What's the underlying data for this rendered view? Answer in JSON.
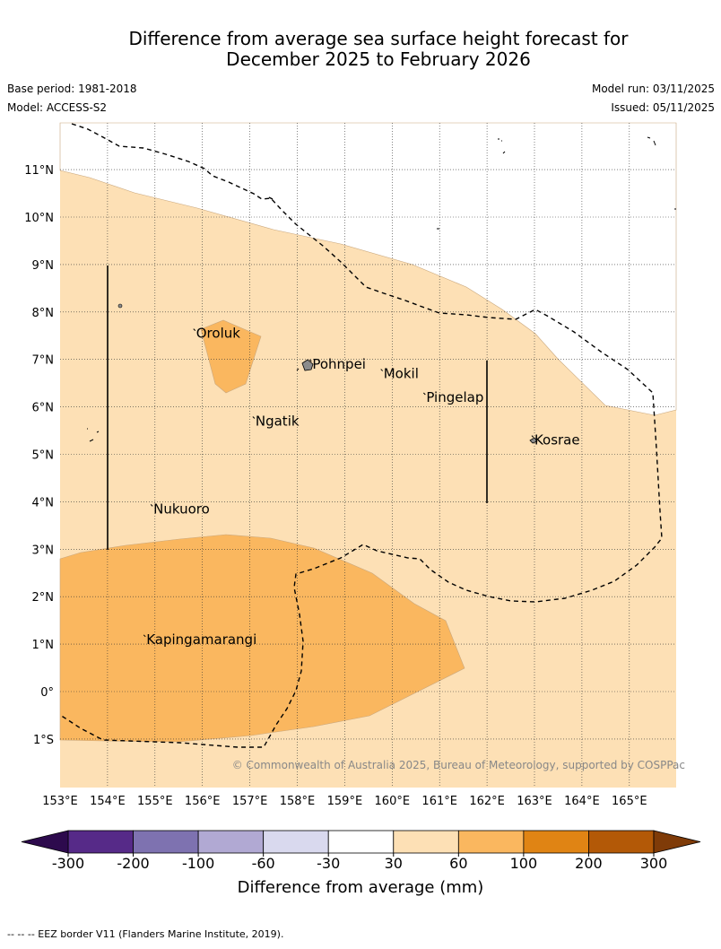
{
  "title_line1": "Difference from average sea surface height forecast for",
  "title_line2": "December 2025 to February 2026",
  "base_period": "Base period: 1981-2018",
  "model": "Model: ACCESS-S2",
  "model_run": "Model run: 03/11/2025",
  "issued": "Issued: 05/11/2025",
  "copyright": "© Commonwealth of Australia 2025, Bureau of Meteorology, supported by COSPPac",
  "lon_labels": [
    "153°E",
    "154°E",
    "155°E",
    "156°E",
    "157°E",
    "158°E",
    "159°E",
    "160°E",
    "161°E",
    "162°E",
    "163°E",
    "164°E",
    "165°E"
  ],
  "lat_labels": [
    "11°N",
    "10°N",
    "9°N",
    "8°N",
    "7°N",
    "6°N",
    "5°N",
    "4°N",
    "3°N",
    "2°N",
    "1°N",
    "0°",
    "1°S"
  ],
  "places": [
    {
      "name": "Oroluk",
      "lon": 155.85,
      "lat": 7.55
    },
    {
      "name": "Pohnpei",
      "lon": 158.3,
      "lat": 6.9
    },
    {
      "name": "Mokil",
      "lon": 159.8,
      "lat": 6.7
    },
    {
      "name": "Pingelap",
      "lon": 160.7,
      "lat": 6.2
    },
    {
      "name": "Ngatik",
      "lon": 157.1,
      "lat": 5.7
    },
    {
      "name": "Kosrae",
      "lon": 162.98,
      "lat": 5.3
    },
    {
      "name": "Nukuoro",
      "lon": 154.95,
      "lat": 3.85
    },
    {
      "name": "Kapingamarangi",
      "lon": 154.8,
      "lat": 1.1
    }
  ],
  "colorbar": {
    "ticks": [
      "-300",
      "-200",
      "-100",
      "-60",
      "-30",
      "30",
      "60",
      "100",
      "200",
      "300"
    ],
    "colors": [
      "#562a88",
      "#7e72b0",
      "#b1a9d3",
      "#d9d9ee",
      "#ffffff",
      "#fde0b5",
      "#fab75f",
      "#e08414",
      "#b35907"
    ],
    "under_color": "#2d0a4d",
    "over_color": "#7f3b08",
    "label": "Difference from average (mm)"
  },
  "footer": "--  --  -- EEZ border V11 (Flanders Marine Institute, 2019)."
}
